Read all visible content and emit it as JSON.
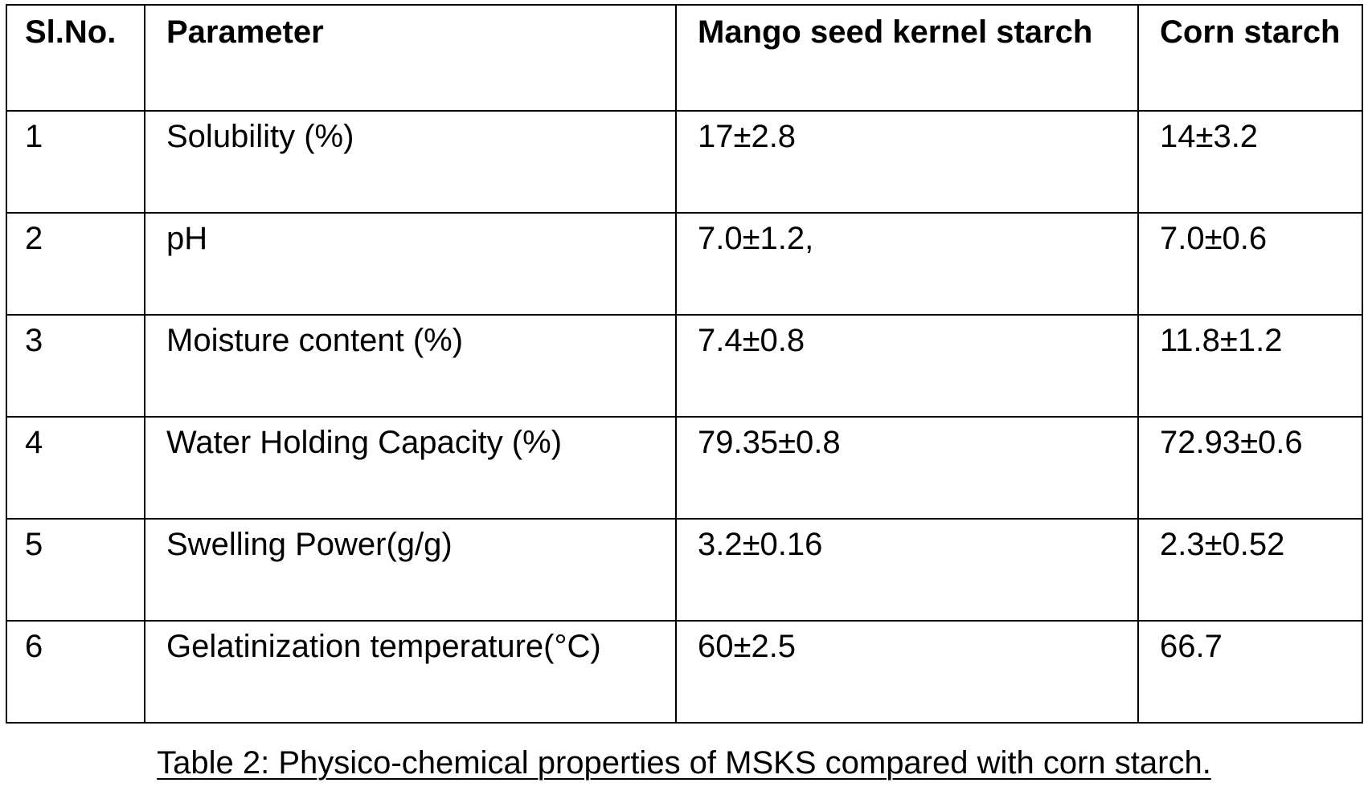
{
  "table": {
    "headers": [
      "Sl.No.",
      "Parameter",
      "Mango seed kernel starch",
      "Corn starch"
    ],
    "rows": [
      [
        "1",
        "Solubility (%)",
        "17±2.8",
        "14±3.2"
      ],
      [
        "2",
        "pH",
        "7.0±1.2,",
        "7.0±0.6"
      ],
      [
        "3",
        "Moisture content (%)",
        "7.4±0.8",
        "11.8±1.2"
      ],
      [
        "4",
        "Water Holding Capacity (%)",
        "79.35±0.8",
        "72.93±0.6"
      ],
      [
        "5",
        "Swelling Power(g/g)",
        "3.2±0.16",
        "2.3±0.52"
      ],
      [
        "6",
        "Gelatinization temperature(°C)",
        "60±2.5",
        "66.7"
      ]
    ]
  },
  "caption": "Table 2: Physico-chemical properties of MSKS compared with corn starch."
}
